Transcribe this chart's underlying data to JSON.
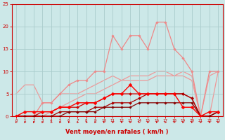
{
  "background_color": "#cce8e8",
  "grid_color": "#aacccc",
  "xlabel": "Vent moyen/en rafales ( km/h )",
  "xlim": [
    -0.5,
    23.5
  ],
  "ylim": [
    0,
    25
  ],
  "xticks": [
    0,
    1,
    2,
    3,
    4,
    5,
    6,
    7,
    8,
    9,
    10,
    11,
    12,
    13,
    14,
    15,
    16,
    17,
    18,
    19,
    20,
    21,
    22,
    23
  ],
  "yticks": [
    0,
    5,
    10,
    15,
    20,
    25
  ],
  "series": [
    {
      "x": [
        0,
        1,
        2,
        3,
        4,
        5,
        6,
        7,
        8,
        9,
        10,
        11,
        12,
        13,
        14,
        15,
        16,
        17,
        18,
        19,
        20,
        21,
        22,
        23
      ],
      "y": [
        0,
        0,
        0,
        3,
        3,
        5,
        7,
        8,
        8,
        10,
        10,
        18,
        15,
        18,
        18,
        15,
        21,
        21,
        15,
        13,
        10,
        0,
        10,
        10
      ],
      "color": "#ee8888",
      "linewidth": 0.9,
      "marker": "D",
      "markersize": 1.8,
      "zorder": 2
    },
    {
      "x": [
        0,
        1,
        2,
        3,
        4,
        5,
        6,
        7,
        8,
        9,
        10,
        11,
        12,
        13,
        14,
        15,
        16,
        17,
        18,
        19,
        20,
        21,
        22,
        23
      ],
      "y": [
        5,
        7,
        7,
        3,
        3,
        5,
        5,
        5,
        6,
        7,
        8,
        9,
        8,
        9,
        9,
        9,
        10,
        10,
        9,
        9,
        8,
        0,
        0,
        10
      ],
      "color": "#ee9999",
      "linewidth": 0.9,
      "marker": null,
      "zorder": 1
    },
    {
      "x": [
        0,
        1,
        2,
        3,
        4,
        5,
        6,
        7,
        8,
        9,
        10,
        11,
        12,
        13,
        14,
        15,
        16,
        17,
        18,
        19,
        20,
        21,
        22,
        23
      ],
      "y": [
        0,
        0,
        0,
        0,
        1,
        2,
        3,
        4,
        5,
        5,
        6,
        7,
        8,
        8,
        8,
        8,
        9,
        9,
        9,
        10,
        9,
        0,
        9,
        10
      ],
      "color": "#ee9999",
      "linewidth": 0.9,
      "marker": null,
      "zorder": 1
    },
    {
      "x": [
        0,
        1,
        2,
        3,
        4,
        5,
        6,
        7,
        8,
        9,
        10,
        11,
        12,
        13,
        14,
        15,
        16,
        17,
        18,
        19,
        20,
        21,
        22,
        23
      ],
      "y": [
        0,
        1,
        1,
        1,
        1,
        2,
        2,
        3,
        3,
        3,
        4,
        5,
        5,
        7,
        5,
        5,
        5,
        5,
        5,
        2,
        2,
        0,
        1,
        1
      ],
      "color": "#ff0000",
      "linewidth": 1.0,
      "marker": "D",
      "markersize": 2.5,
      "zorder": 4
    },
    {
      "x": [
        0,
        1,
        2,
        3,
        4,
        5,
        6,
        7,
        8,
        9,
        10,
        11,
        12,
        13,
        14,
        15,
        16,
        17,
        18,
        19,
        20,
        21,
        22,
        23
      ],
      "y": [
        0,
        0,
        0,
        1,
        1,
        2,
        2,
        2,
        3,
        3,
        4,
        5,
        5,
        5,
        5,
        5,
        5,
        5,
        5,
        5,
        4,
        0,
        0,
        1
      ],
      "color": "#cc0000",
      "linewidth": 0.9,
      "marker": "D",
      "markersize": 2.0,
      "zorder": 3
    },
    {
      "x": [
        0,
        1,
        2,
        3,
        4,
        5,
        6,
        7,
        8,
        9,
        10,
        11,
        12,
        13,
        14,
        15,
        16,
        17,
        18,
        19,
        20,
        21,
        22,
        23
      ],
      "y": [
        0,
        0,
        0,
        0,
        0,
        1,
        1,
        1,
        1,
        2,
        2,
        3,
        3,
        3,
        4,
        5,
        5,
        5,
        5,
        5,
        4,
        0,
        0,
        1
      ],
      "color": "#aa0000",
      "linewidth": 0.9,
      "marker": "D",
      "markersize": 2.0,
      "zorder": 3
    },
    {
      "x": [
        0,
        1,
        2,
        3,
        4,
        5,
        6,
        7,
        8,
        9,
        10,
        11,
        12,
        13,
        14,
        15,
        16,
        17,
        18,
        19,
        20,
        21,
        22,
        23
      ],
      "y": [
        0,
        0,
        0,
        0,
        0,
        0,
        1,
        1,
        1,
        1,
        2,
        2,
        2,
        2,
        3,
        3,
        3,
        3,
        3,
        3,
        3,
        0,
        0,
        1
      ],
      "color": "#880000",
      "linewidth": 0.9,
      "marker": "D",
      "markersize": 1.8,
      "zorder": 3
    }
  ],
  "arrow_color": "#cc0000",
  "label_color": "#cc0000",
  "tick_color": "#cc0000",
  "axis_color": "#cc0000"
}
